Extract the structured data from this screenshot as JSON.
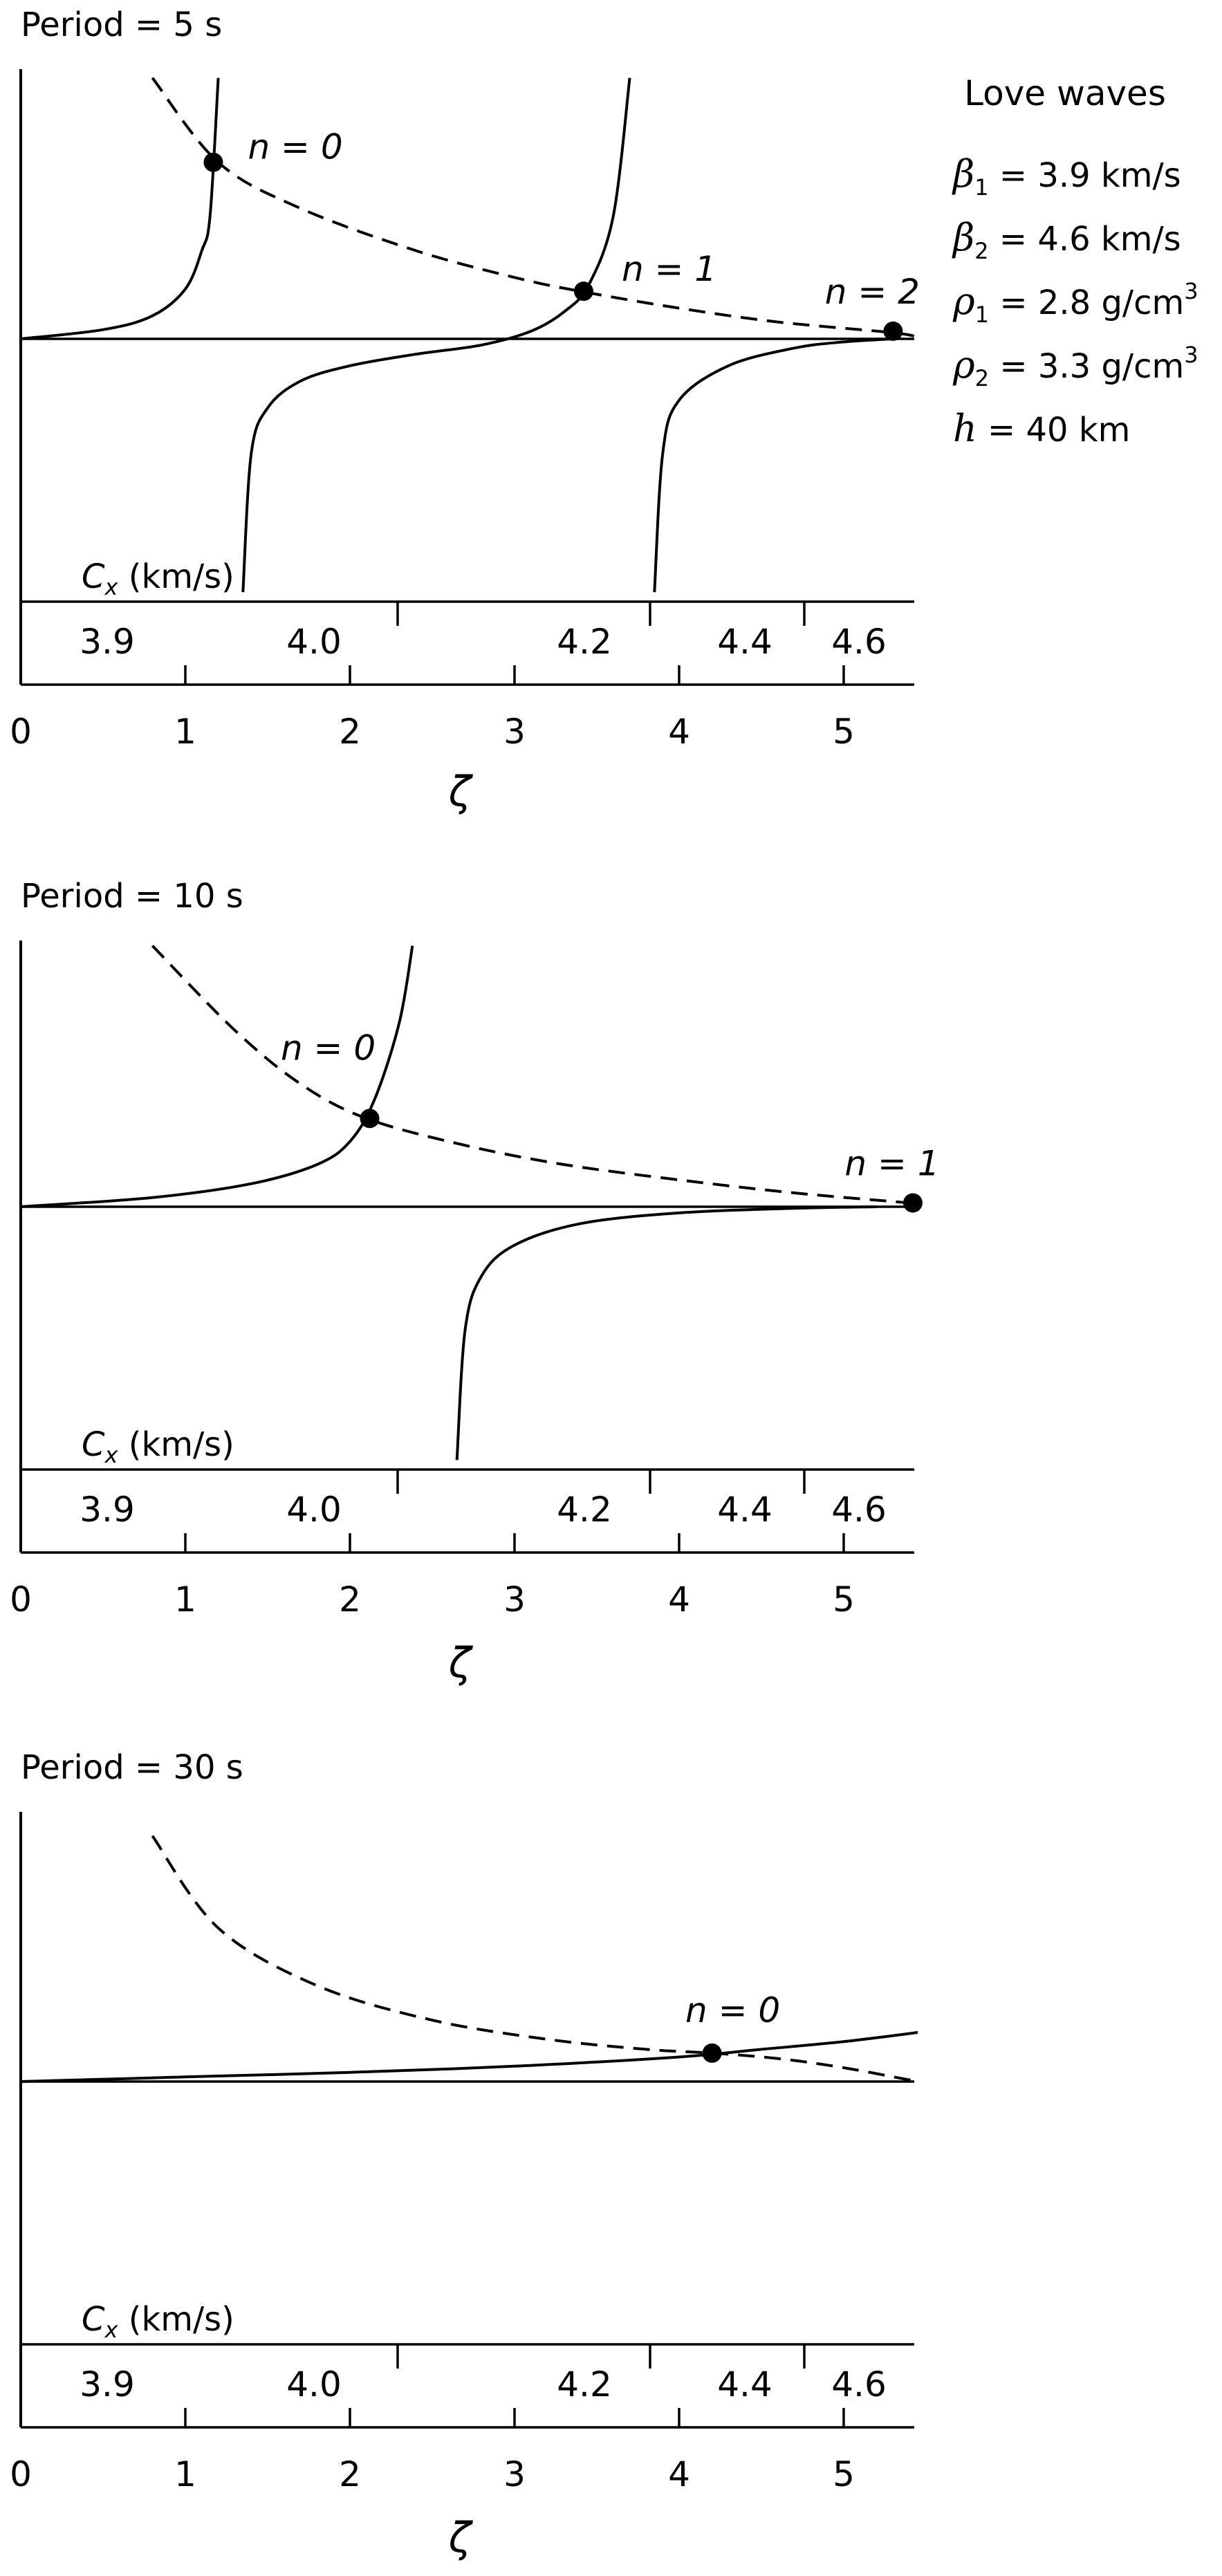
{
  "chart_data": [
    {
      "type": "line",
      "title": "Period = 5 s",
      "xlabel": "ζ",
      "secondary_axis_label": "Cx (km/s)",
      "xlim": [
        0,
        5.45
      ],
      "x_ticks": [
        "0",
        "1",
        "2",
        "3",
        "4",
        "5"
      ],
      "cx_ticks": [
        "3.9",
        "4.0",
        "4.2",
        "4.4",
        "4.6"
      ],
      "series": [
        {
          "style": "dashed",
          "x": [
            0.8,
            1.2,
            1.7,
            2.4,
            3.0,
            3.4,
            4.0,
            4.6,
            5.3,
            5.45
          ],
          "y": [
            3.4,
            2.3,
            1.7,
            1.15,
            0.8,
            0.62,
            0.4,
            0.22,
            0.08,
            0.02
          ]
        },
        {
          "style": "solid",
          "x": [
            0.0,
            0.5,
            0.8,
            1.0,
            1.1,
            1.15,
            1.2
          ],
          "y": [
            0.0,
            0.12,
            0.3,
            0.65,
            1.15,
            1.6,
            3.4
          ]
        },
        {
          "style": "solid",
          "x": [
            1.35,
            1.4,
            1.5,
            1.7,
            2.0,
            2.4,
            2.8,
            3.1,
            3.3,
            3.45,
            3.6,
            3.7
          ],
          "y": [
            -3.3,
            -1.5,
            -0.9,
            -0.55,
            -0.35,
            -0.2,
            -0.08,
            0.1,
            0.35,
            0.7,
            1.6,
            3.4
          ]
        },
        {
          "style": "solid",
          "x": [
            3.85,
            3.9,
            4.0,
            4.3,
            4.7,
            5.0,
            5.3
          ],
          "y": [
            -3.3,
            -1.5,
            -0.8,
            -0.35,
            -0.12,
            -0.04,
            0.0
          ]
        }
      ],
      "points": [
        {
          "label": "n = 0",
          "x": 1.17,
          "y": 2.3
        },
        {
          "label": "n = 1",
          "x": 3.42,
          "y": 0.62
        },
        {
          "label": "n = 2",
          "x": 5.3,
          "y": 0.1
        }
      ]
    },
    {
      "type": "line",
      "title": "Period = 10 s",
      "xlabel": "ζ",
      "secondary_axis_label": "Cx (km/s)",
      "xlim": [
        0,
        5.45
      ],
      "x_ticks": [
        "0",
        "1",
        "2",
        "3",
        "4",
        "5"
      ],
      "cx_ticks": [
        "3.9",
        "4.0",
        "4.2",
        "4.4",
        "4.6"
      ],
      "series": [
        {
          "style": "dashed",
          "x": [
            0.8,
            1.3,
            1.7,
            2.1,
            2.7,
            3.3,
            4.0,
            4.7,
            5.4
          ],
          "y": [
            3.4,
            2.3,
            1.6,
            1.15,
            0.8,
            0.55,
            0.35,
            0.18,
            0.05
          ]
        },
        {
          "style": "solid",
          "x": [
            0.0,
            0.8,
            1.4,
            1.8,
            2.0,
            2.15,
            2.3,
            2.38
          ],
          "y": [
            0.0,
            0.12,
            0.3,
            0.55,
            0.85,
            1.4,
            2.4,
            3.4
          ]
        },
        {
          "style": "solid",
          "x": [
            2.65,
            2.7,
            2.8,
            3.0,
            3.4,
            4.0,
            4.7,
            5.2
          ],
          "y": [
            -3.3,
            -1.6,
            -0.9,
            -0.5,
            -0.22,
            -0.08,
            -0.02,
            0.0
          ]
        }
      ],
      "points": [
        {
          "label": "n = 0",
          "x": 2.12,
          "y": 1.15
        },
        {
          "label": "n = 1",
          "x": 5.42,
          "y": 0.05
        }
      ]
    },
    {
      "type": "line",
      "title": "Period = 30 s",
      "xlabel": "ζ",
      "secondary_axis_label": "Cx (km/s)",
      "xlim": [
        0,
        5.45
      ],
      "x_ticks": [
        "0",
        "1",
        "2",
        "3",
        "4",
        "5"
      ],
      "cx_ticks": [
        "3.9",
        "4.0",
        "4.2",
        "4.4",
        "4.6"
      ],
      "series": [
        {
          "style": "dashed",
          "x": [
            0.8,
            1.2,
            1.8,
            2.5,
            3.2,
            3.8,
            4.2,
            4.6,
            5.0,
            5.45
          ],
          "y": [
            3.2,
            2.0,
            1.25,
            0.8,
            0.55,
            0.42,
            0.37,
            0.3,
            0.18,
            0.0
          ]
        },
        {
          "style": "solid",
          "x": [
            0.0,
            1.0,
            2.0,
            3.0,
            4.0,
            4.5,
            5.0,
            5.45
          ],
          "y": [
            0.0,
            0.06,
            0.12,
            0.2,
            0.32,
            0.42,
            0.52,
            0.64
          ]
        }
      ],
      "points": [
        {
          "label": "n = 0",
          "x": 4.2,
          "y": 0.37
        }
      ]
    }
  ],
  "legend": {
    "title": "Love waves",
    "lines": [
      {
        "sym": "β",
        "sub": "1",
        "rest": " = 3.9 km/s",
        "sup": ""
      },
      {
        "sym": "β",
        "sub": "2",
        "rest": " = 4.6 km/s",
        "sup": ""
      },
      {
        "sym": "ρ",
        "sub": "1",
        "rest": " = 2.8 g/cm",
        "sup": "3"
      },
      {
        "sym": "ρ",
        "sub": "2",
        "rest": " = 3.3 g/cm",
        "sup": "3"
      },
      {
        "sym": "h",
        "sub": "",
        "rest": " = 40 km",
        "sup": ""
      }
    ]
  }
}
